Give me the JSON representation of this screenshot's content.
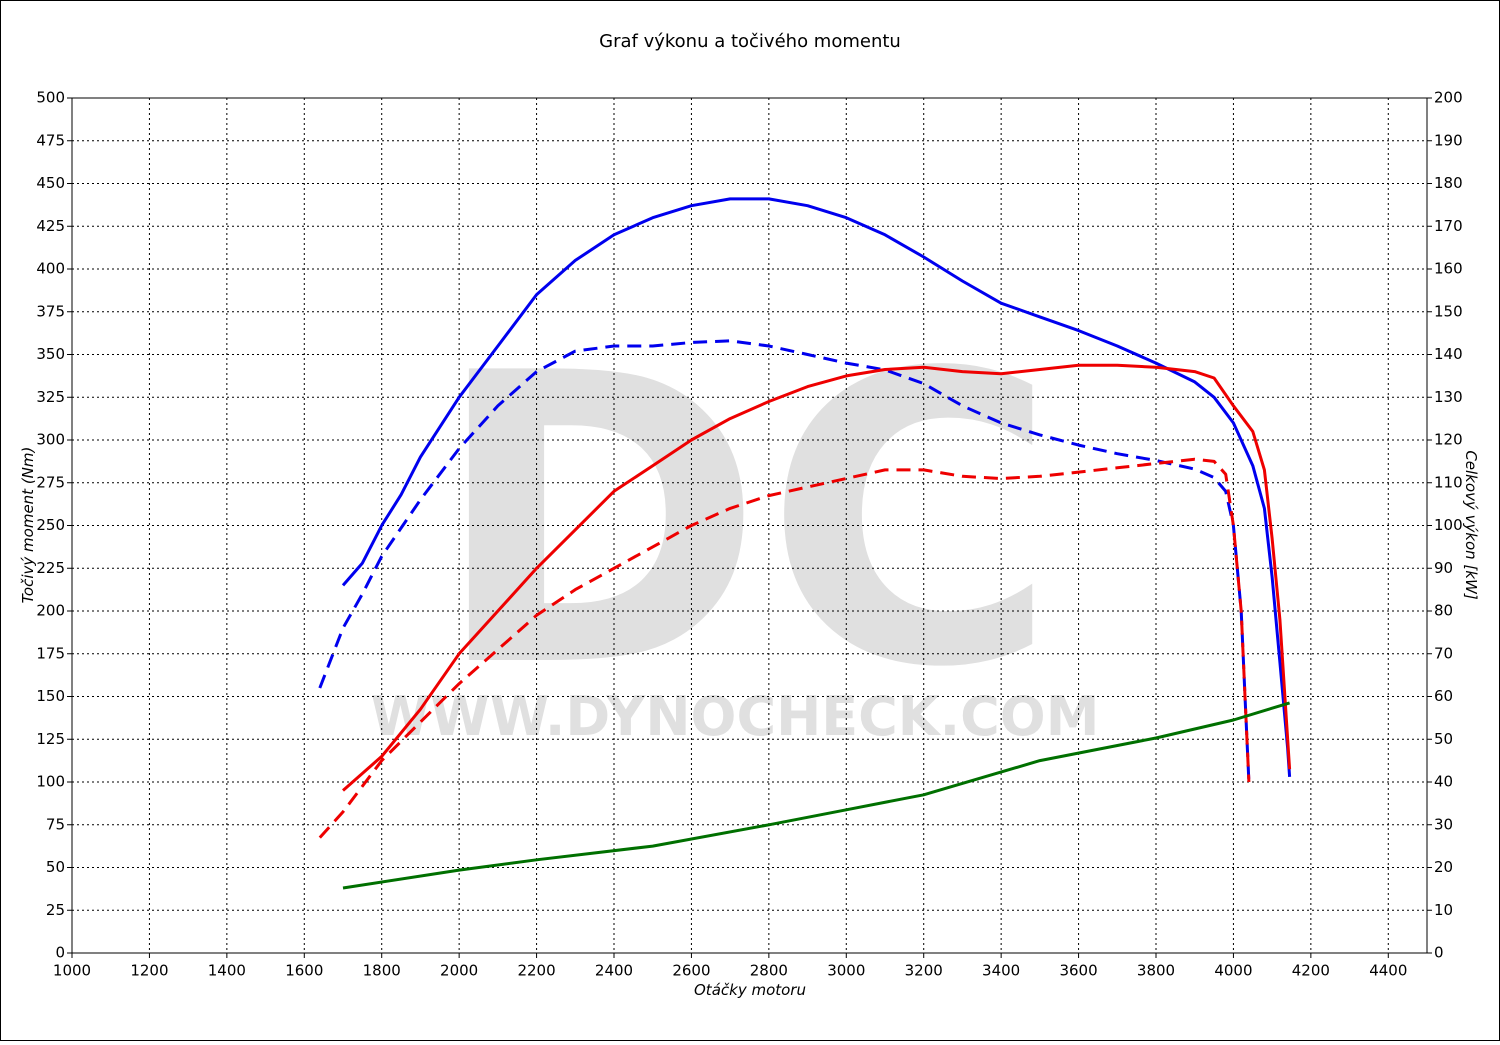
{
  "chart_data": {
    "type": "line",
    "title": "Graf výkonu a točivého momentu",
    "x_label": "Otáčky motoru",
    "y_label": "Točivý moment (Nm)",
    "y2_label": "Celkový výkon [kW]",
    "watermark": "DC",
    "watermark_url": "WWW.DYNOCHECK.COM",
    "xlim": [
      1000,
      4500
    ],
    "xticks": [
      1000,
      1200,
      1400,
      1600,
      1800,
      2000,
      2200,
      2400,
      2600,
      2800,
      3000,
      3200,
      3400,
      3600,
      3800,
      4000,
      4200,
      4400
    ],
    "ylim": [
      0,
      500
    ],
    "yticks": [
      0,
      25,
      50,
      75,
      100,
      125,
      150,
      175,
      200,
      225,
      250,
      275,
      300,
      325,
      350,
      375,
      400,
      425,
      450,
      475,
      500
    ],
    "y2lim": [
      0,
      200
    ],
    "y2ticks": [
      0,
      10,
      20,
      30,
      40,
      50,
      60,
      70,
      80,
      90,
      100,
      110,
      120,
      130,
      140,
      150,
      160,
      170,
      180,
      190,
      200
    ],
    "grid": true,
    "series": [
      {
        "color": "#0000ee",
        "dashed": false,
        "axis": "y",
        "x": [
          1700,
          1750,
          1800,
          1850,
          1900,
          2000,
          2100,
          2200,
          2300,
          2400,
          2500,
          2600,
          2700,
          2800,
          2900,
          3000,
          3100,
          3200,
          3300,
          3400,
          3500,
          3600,
          3700,
          3800,
          3900,
          3950,
          4000,
          4050,
          4080,
          4100,
          4120,
          4140,
          4145
        ],
        "values": [
          215,
          228,
          250,
          268,
          290,
          325,
          355,
          385,
          405,
          420,
          430,
          437,
          441,
          441,
          437,
          430,
          420,
          407,
          393,
          380,
          372,
          364,
          355,
          345,
          334,
          325,
          310,
          285,
          260,
          220,
          170,
          120,
          103
        ]
      },
      {
        "color": "#0000ee",
        "dashed": true,
        "axis": "y",
        "x": [
          1640,
          1700,
          1750,
          1800,
          1900,
          2000,
          2100,
          2200,
          2300,
          2400,
          2500,
          2600,
          2700,
          2800,
          2900,
          3000,
          3100,
          3200,
          3300,
          3400,
          3500,
          3600,
          3700,
          3800,
          3900,
          3950,
          3980,
          4000,
          4020,
          4030,
          4040
        ],
        "values": [
          155,
          190,
          210,
          232,
          265,
          295,
          320,
          340,
          352,
          355,
          355,
          357,
          358,
          355,
          350,
          345,
          341,
          333,
          320,
          310,
          303,
          297,
          292,
          288,
          283,
          278,
          270,
          250,
          200,
          150,
          100
        ]
      },
      {
        "color": "#ee0000",
        "dashed": false,
        "axis": "y2",
        "x": [
          1700,
          1800,
          1900,
          2000,
          2100,
          2200,
          2300,
          2400,
          2500,
          2600,
          2700,
          2800,
          2900,
          3000,
          3100,
          3200,
          3300,
          3400,
          3500,
          3600,
          3700,
          3800,
          3900,
          3950,
          4000,
          4050,
          4080,
          4100,
          4120,
          4145
        ],
        "values": [
          38,
          46,
          57,
          70,
          80,
          90,
          99,
          108,
          114,
          120,
          125,
          129,
          132.5,
          135,
          136.5,
          137,
          136,
          135.5,
          136.5,
          137.5,
          137.5,
          137,
          136,
          134.5,
          128,
          122,
          113,
          97,
          78,
          43
        ]
      },
      {
        "color": "#ee0000",
        "dashed": true,
        "axis": "y2",
        "x": [
          1640,
          1700,
          1800,
          1900,
          2000,
          2100,
          2200,
          2300,
          2400,
          2500,
          2600,
          2700,
          2800,
          2900,
          3000,
          3100,
          3200,
          3300,
          3400,
          3500,
          3600,
          3700,
          3800,
          3900,
          3950,
          3980,
          4000,
          4020,
          4030,
          4040
        ],
        "values": [
          27,
          33,
          45,
          54,
          63,
          71,
          79,
          85,
          90,
          95,
          100,
          104,
          107,
          109,
          111,
          113,
          113,
          111.5,
          111,
          111.5,
          112.5,
          113.5,
          114.5,
          115.5,
          115,
          112,
          100,
          80,
          60,
          40
        ]
      },
      {
        "color": "#007000",
        "dashed": false,
        "axis": "y2",
        "x": [
          1700,
          2000,
          2200,
          2500,
          2800,
          3000,
          3200,
          3500,
          3800,
          4000,
          4145
        ],
        "values": [
          15.2,
          19.4,
          21.8,
          25,
          30,
          33.5,
          37,
          45,
          50.3,
          54.5,
          58.5
        ]
      }
    ]
  }
}
